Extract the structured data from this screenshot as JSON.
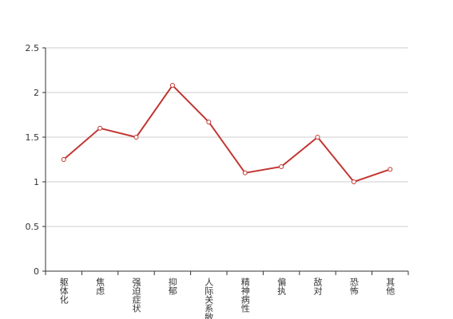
{
  "chart_data": {
    "type": "line",
    "categories": [
      "躯体化",
      "焦虑",
      "强迫症状",
      "抑郁",
      "人际关系敏感",
      "精神病性",
      "偏执",
      "敌对",
      "恐怖",
      "其他"
    ],
    "values": [
      1.25,
      1.6,
      1.5,
      2.08,
      1.67,
      1.1,
      1.17,
      1.5,
      1.0,
      1.14
    ],
    "color": "#c23531",
    "ylim": [
      0,
      2.5
    ],
    "yticks": [
      0,
      0.5,
      1,
      1.5,
      2,
      2.5
    ],
    "grid": true
  }
}
